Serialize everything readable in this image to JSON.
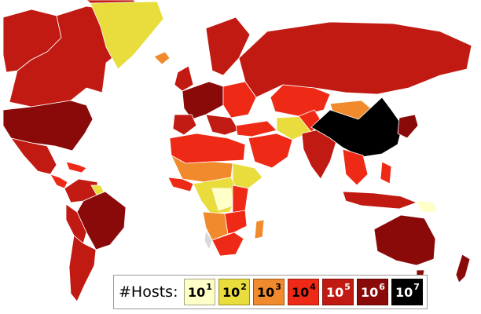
{
  "legend": {
    "title": "#Hosts:",
    "items": [
      {
        "base": "10",
        "exp": "1",
        "color": "#ffffc8",
        "text_color": "#000000"
      },
      {
        "base": "10",
        "exp": "2",
        "color": "#e8dd3c",
        "text_color": "#000000"
      },
      {
        "base": "10",
        "exp": "3",
        "color": "#f08a2c",
        "text_color": "#000000"
      },
      {
        "base": "10",
        "exp": "4",
        "color": "#ee2a16",
        "text_color": "#000000"
      },
      {
        "base": "10",
        "exp": "5",
        "color": "#c11a12",
        "text_color": "#ffffff"
      },
      {
        "base": "10",
        "exp": "6",
        "color": "#8a0a0a",
        "text_color": "#ffffff"
      },
      {
        "base": "10",
        "exp": "7",
        "color": "#000000",
        "text_color": "#ffffff"
      }
    ]
  },
  "colors": {
    "water": "#ffffff",
    "border": "#ffffff",
    "no_data": "#d9d9d9"
  }
}
